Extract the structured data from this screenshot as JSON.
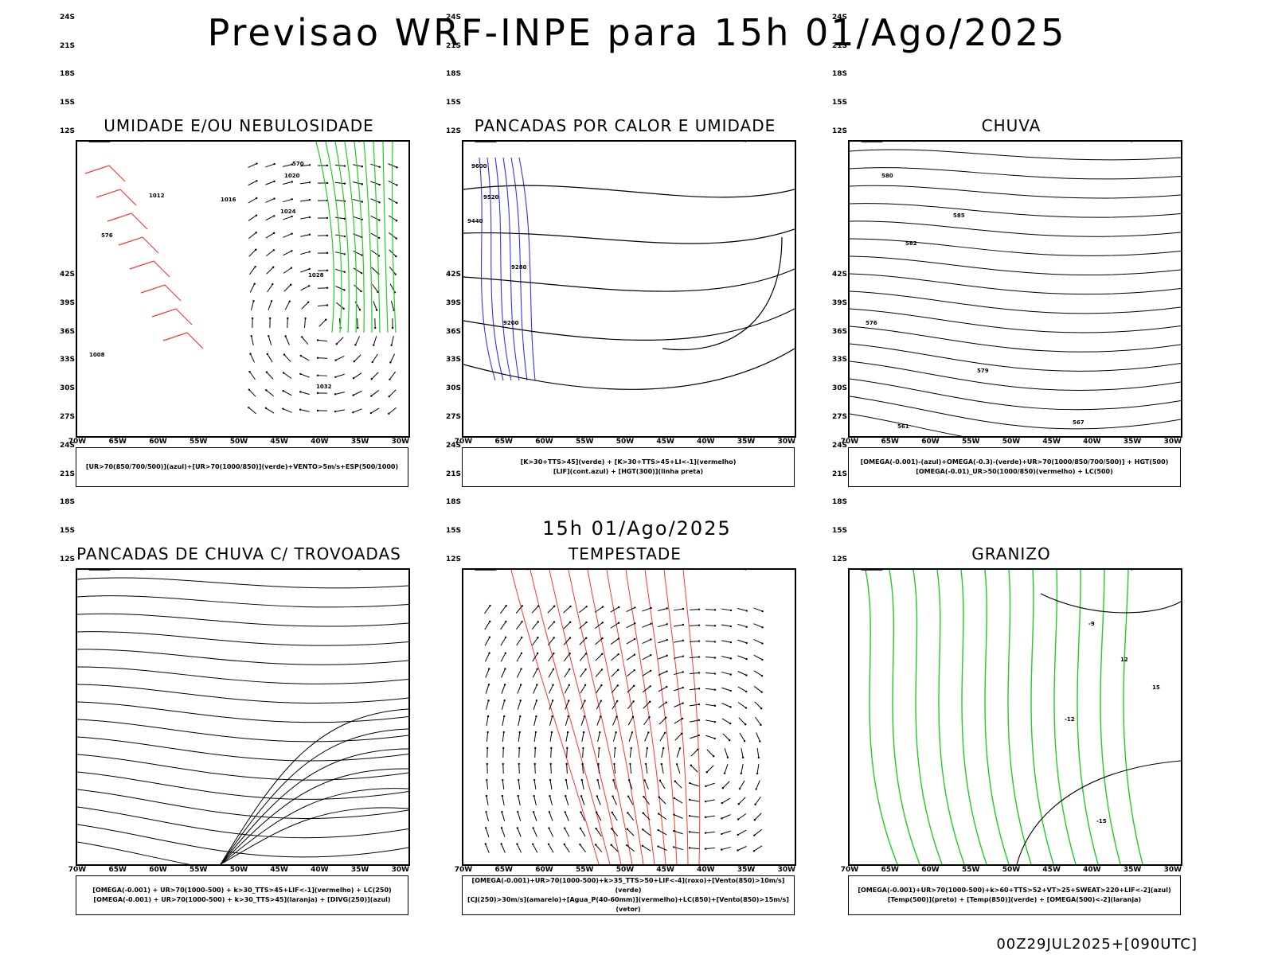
{
  "title": "Previsao WRF-INPE  para 15h 01/Ago/2025",
  "mid_title": "15h 01/Ago/2025",
  "footer": "00Z29JUL2025+[090UTC]",
  "lat_labels": [
    "12S",
    "15S",
    "18S",
    "21S",
    "24S",
    "27S",
    "30S",
    "33S",
    "36S",
    "39S",
    "42S"
  ],
  "lon_labels": [
    "70W",
    "65W",
    "60W",
    "55W",
    "50W",
    "45W",
    "40W",
    "35W",
    "30W"
  ],
  "panels": [
    {
      "title": "UMIDADE E/OU NEBULOSIDADE",
      "legend": [
        "[UR>70(850/700/500)](azul)+[UR>70(1000/850)](verde)+VENTO>5m/s+ESP(500/1000)"
      ],
      "contour_labels": [
        "1020",
        "1016",
        "1024",
        "1028",
        "1032",
        "1012",
        "570",
        "576",
        "1008"
      ]
    },
    {
      "title": "PANCADAS POR CALOR E UMIDADE",
      "legend": [
        "[K>30+TTS>45](verde) + [K>30+TTS>45+LI<-1](vermelho)",
        "[LIF](cont.azul) + [HGT(300)](linha preta)"
      ],
      "contour_labels": [
        "9600",
        "9520",
        "9440",
        "9280",
        "9200"
      ]
    },
    {
      "title": "CHUVA",
      "legend": [
        "[OMEGA(-0.001)-(azul)+OMEGA(-0.3)-(verde)+UR>70(1000/850/700/500)] + HGT(500)",
        "[OMEGA(-0.01)_UR>50(1000/850)(vermelho) + LC(500)"
      ],
      "contour_labels": [
        "580",
        "585",
        "582",
        "576",
        "579",
        "567",
        "561"
      ]
    },
    {
      "title": "PANCADAS DE CHUVA C/ TROVOADAS",
      "legend": [
        "[OMEGA(-0.001) + UR>70(1000-500) + k>30_TTS>45+LIF<-1](vermelho) + LC(250)",
        "[OMEGA(-0.001) + UR>70(1000-500) + k>30_TTS>45](laranja) + [DIVG(250)](azul)"
      ],
      "contour_labels": []
    },
    {
      "title": "TEMPESTADE",
      "legend": [
        "[OMEGA(-0.001)+UR>70(1000-500)+k>35_TTS>50+LIF<-4](roxo)+[Vento(850)>10m/s](verde)",
        "[CJ(250)>30m/s](amarelo)+[Agua_P(40-60mm)](vermelho)+LC(850)+[Vento(850)>15m/s](vetor)"
      ],
      "contour_labels": []
    },
    {
      "title": "GRANIZO",
      "legend": [
        "[OMEGA(-0.001)+UR>70(1000-500)+k>60+TTS>52+VT>25+SWEAT>220+LIF<-2](azul)",
        "[Temp(500)](preto) + [Temp(850)](verde) + [OMEGA(500)<-2](laranja)"
      ],
      "contour_labels": [
        "-12",
        "-15",
        "-9",
        "12",
        "15"
      ]
    }
  ],
  "colors": {
    "red": "#ff3333",
    "green": "#22cc22",
    "blue": "#3333ff",
    "lavender": "#b0b0f0",
    "dark_teal": "#1e3b38",
    "yellow": "#e5dc2a",
    "orange": "#ee8822",
    "bright_green": "#33dd33"
  }
}
